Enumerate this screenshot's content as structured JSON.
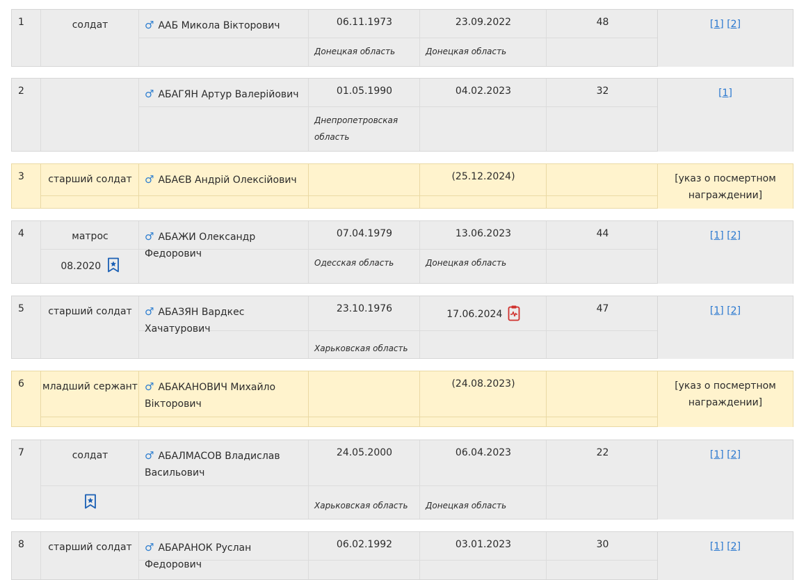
{
  "rows": [
    {
      "num": "1",
      "rank": "солдат",
      "name": "ААБ Микола Вікторович",
      "birth": "06.11.1973",
      "death": "23.09.2022",
      "age": "48",
      "birth_region": "Донецкая область",
      "death_region": "Донецкая область",
      "links": [
        "[1]",
        "[2]"
      ]
    },
    {
      "num": "2",
      "rank": "",
      "name": "АБАГЯН Артур Валерійович",
      "birth": "01.05.1990",
      "death": "04.02.2023",
      "age": "32",
      "birth_region": "Днепропетровская область",
      "death_region": "",
      "links": [
        "[1]"
      ]
    },
    {
      "num": "3",
      "rank": "старший солдат",
      "name": "АБАЄВ Андрій Олексійович",
      "birth": "",
      "death": "(25.12.2024)",
      "age": "",
      "note": "[указ о посмертном награждении]"
    },
    {
      "num": "4",
      "rank": "матрос",
      "rank_date": "08.2020",
      "name": "АБАЖИ Олександр Федорович",
      "birth": "07.04.1979",
      "death": "13.06.2023",
      "age": "44",
      "birth_region": "Одесская область",
      "death_region": "Донецкая область",
      "links": [
        "[1]",
        "[2]"
      ]
    },
    {
      "num": "5",
      "rank": "старший солдат",
      "name": "АБАЗЯН Вардкес Хачатурович",
      "birth": "23.10.1976",
      "death": "17.06.2024",
      "age": "47",
      "birth_region": "Харьковская область",
      "death_region": "",
      "links": [
        "[1]",
        "[2]"
      ]
    },
    {
      "num": "6",
      "rank": "младший сержант",
      "name": "АБАКАНОВИЧ Михайло Вікторович",
      "birth": "",
      "death": "(24.08.2023)",
      "age": "",
      "note": "[указ о посмертном награждении]"
    },
    {
      "num": "7",
      "rank": "солдат",
      "name": "АБАЛМАСОВ Владислав Васильович",
      "birth": "24.05.2000",
      "death": "06.04.2023",
      "age": "22",
      "birth_region": "Харьковская область",
      "death_region": "Донецкая область",
      "links": [
        "[1]",
        "[2]"
      ]
    },
    {
      "num": "8",
      "rank": "старший солдат",
      "name": "АБАРАНОК Руслан Федорович",
      "birth": "06.02.1992",
      "death": "03.01.2023",
      "age": "30",
      "links": [
        "[1]",
        "[2]"
      ]
    }
  ],
  "male_symbol": "♂",
  "icons": {
    "award": "bookmark-star-icon",
    "medical": "medical-report-icon"
  },
  "colors": {
    "gray_row": "#ececec",
    "yellow_row": "#fff3cd",
    "link": "#2a78cf",
    "icon_blue": "#1a5fb4",
    "icon_red": "#d0312d"
  }
}
